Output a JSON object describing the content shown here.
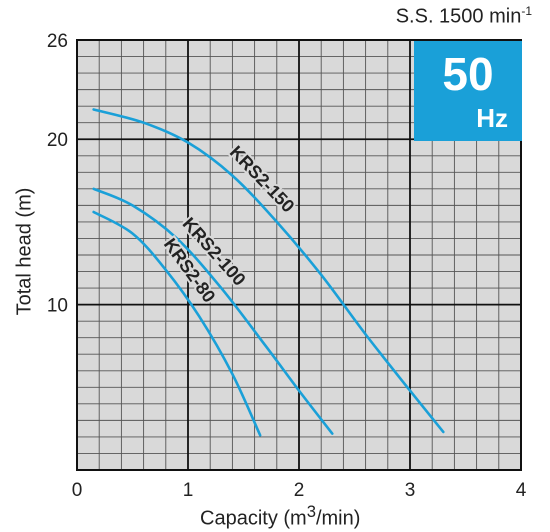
{
  "header": {
    "speed_prefix": "S.S. 1500 min",
    "speed_exp": "-1"
  },
  "badge": {
    "frequency": "50",
    "unit": "Hz",
    "color": "#1aa0d8"
  },
  "axes": {
    "xlabel_prefix": "Capacity (m",
    "xlabel_exp": "3",
    "xlabel_suffix": "/min)",
    "ylabel": "Total head (m)"
  },
  "chart_data": {
    "type": "line",
    "title": "",
    "xlim": [
      0,
      4
    ],
    "ylim": [
      0,
      26
    ],
    "x_ticks": [
      "0",
      "1",
      "2",
      "3",
      "4"
    ],
    "y_ticks": [
      "10",
      "20",
      "26"
    ],
    "grid": true,
    "line_color": "#1aa0d8",
    "series": [
      {
        "name": "KRS2-150",
        "x": [
          0.15,
          0.6,
          1.0,
          1.4,
          1.8,
          2.2,
          2.6,
          3.0,
          3.3
        ],
        "y": [
          21.8,
          21.0,
          19.8,
          17.8,
          15.0,
          11.8,
          8.2,
          4.8,
          2.3
        ]
      },
      {
        "name": "KRS2-100",
        "x": [
          0.15,
          0.5,
          0.9,
          1.3,
          1.7,
          2.0,
          2.3
        ],
        "y": [
          17.0,
          16.0,
          14.0,
          11.0,
          7.5,
          4.8,
          2.2
        ]
      },
      {
        "name": "KRS2-80",
        "x": [
          0.15,
          0.5,
          0.8,
          1.1,
          1.4,
          1.65
        ],
        "y": [
          15.6,
          14.3,
          12.1,
          9.3,
          5.8,
          2.1
        ]
      }
    ]
  }
}
